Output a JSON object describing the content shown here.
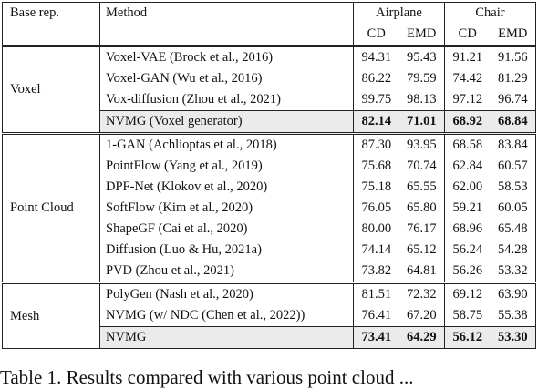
{
  "header": {
    "base_rep": "Base rep.",
    "method": "Method",
    "groups": [
      "Airplane",
      "Chair"
    ],
    "metrics": [
      "CD",
      "EMD",
      "CD",
      "EMD"
    ]
  },
  "sections": [
    {
      "base": "Voxel",
      "rows": [
        {
          "method": "Voxel-VAE (Brock et al., 2016)",
          "values": [
            "94.31",
            "95.43",
            "91.21",
            "91.56"
          ],
          "highlight": false
        },
        {
          "method": "Voxel-GAN (Wu et al., 2016)",
          "values": [
            "86.22",
            "79.59",
            "74.42",
            "81.29"
          ],
          "highlight": false
        },
        {
          "method": "Vox-diffusion (Zhou et al., 2021)",
          "values": [
            "99.75",
            "98.13",
            "97.12",
            "96.74"
          ],
          "highlight": false
        },
        {
          "method": "NVMG (Voxel generator)",
          "values": [
            "82.14",
            "71.01",
            "68.92",
            "68.84"
          ],
          "highlight": true
        }
      ]
    },
    {
      "base": "Point Cloud",
      "rows": [
        {
          "method": "1-GAN (Achlioptas et al., 2018)",
          "values": [
            "87.30",
            "93.95",
            "68.58",
            "83.84"
          ],
          "highlight": false
        },
        {
          "method": "PointFlow (Yang et al., 2019)",
          "values": [
            "75.68",
            "70.74",
            "62.84",
            "60.57"
          ],
          "highlight": false
        },
        {
          "method": "DPF-Net (Klokov et al., 2020)",
          "values": [
            "75.18",
            "65.55",
            "62.00",
            "58.53"
          ],
          "highlight": false
        },
        {
          "method": "SoftFlow (Kim et al., 2020)",
          "values": [
            "76.05",
            "65.80",
            "59.21",
            "60.05"
          ],
          "highlight": false
        },
        {
          "method": "ShapeGF (Cai et al., 2020)",
          "values": [
            "80.00",
            "76.17",
            "68.96",
            "65.48"
          ],
          "highlight": false
        },
        {
          "method": "Diffusion (Luo & Hu, 2021a)",
          "values": [
            "74.14",
            "65.12",
            "56.24",
            "54.28"
          ],
          "highlight": false
        },
        {
          "method": "PVD (Zhou et al., 2021)",
          "values": [
            "73.82",
            "64.81",
            "56.26",
            "53.32"
          ],
          "highlight": false
        }
      ]
    },
    {
      "base": "Mesh",
      "rows": [
        {
          "method": "PolyGen (Nash et al., 2020)",
          "values": [
            "81.51",
            "72.32",
            "69.12",
            "63.90"
          ],
          "highlight": false
        },
        {
          "method": "NVMG (w/ NDC (Chen et al., 2022))",
          "values": [
            "76.41",
            "67.20",
            "58.75",
            "55.38"
          ],
          "highlight": false
        },
        {
          "method": "NVMG",
          "values": [
            "73.41",
            "64.29",
            "56.12",
            "53.30"
          ],
          "highlight": true
        }
      ]
    }
  ],
  "caption": "Table 1. Results compared with various point cloud ..."
}
